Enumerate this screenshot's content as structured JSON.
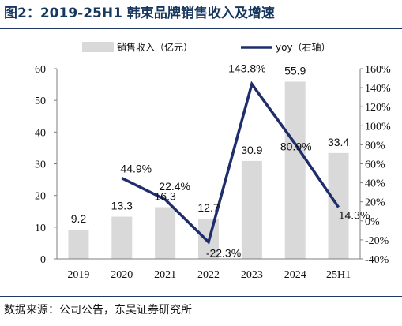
{
  "title": "图2：2019-25H1 韩束品牌销售收入及增速",
  "source": "数据来源：公司公告，东吴证券研究所",
  "chart_data": {
    "type": "bar+line",
    "categories": [
      "2019",
      "2020",
      "2021",
      "2022",
      "2023",
      "2024",
      "25H1"
    ],
    "series": [
      {
        "name": "销售收入（亿元）",
        "type": "bar",
        "axis": "left",
        "color": "#d9d9d9",
        "values": [
          9.2,
          13.3,
          16.3,
          12.7,
          30.9,
          55.9,
          33.4
        ],
        "labels": [
          "9.2",
          "13.3",
          "16.3",
          "12.7",
          "30.9",
          "55.9",
          "33.4"
        ]
      },
      {
        "name": "yoy（右轴）",
        "type": "line",
        "axis": "right",
        "color": "#1f2d6b",
        "values": [
          null,
          44.9,
          22.4,
          -22.3,
          143.8,
          80.9,
          14.3
        ],
        "labels": [
          "",
          "44.9%",
          "22.4%",
          "-22.3%",
          "143.8%",
          "80.9%",
          "14.3%"
        ]
      }
    ],
    "y_left": {
      "min": 0,
      "max": 60,
      "ticks": [
        "0",
        "10",
        "20",
        "30",
        "40",
        "50",
        "60"
      ]
    },
    "y_right": {
      "min": -40,
      "max": 160,
      "ticks": [
        "-40%",
        "-20%",
        "0%",
        "20%",
        "40%",
        "60%",
        "80%",
        "100%",
        "120%",
        "140%",
        "160%"
      ]
    },
    "legend_position": "top",
    "grid": false
  }
}
